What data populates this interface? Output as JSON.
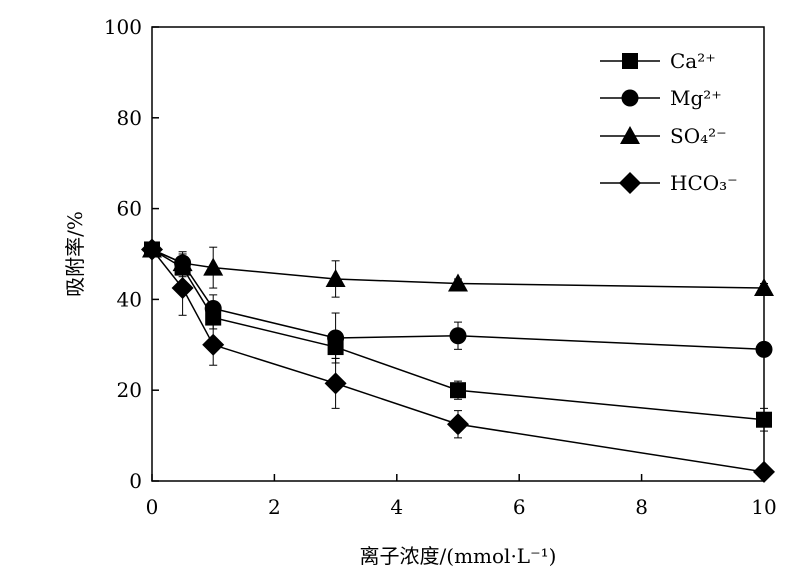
{
  "chart_data": {
    "type": "line",
    "title": "",
    "xlabel": "离子浓度/(mmol·L⁻¹)",
    "ylabel": "吸附率/%",
    "xlim": [
      0,
      10
    ],
    "ylim": [
      0,
      100
    ],
    "x_ticks": [
      0,
      2,
      4,
      6,
      8,
      10
    ],
    "y_ticks": [
      0,
      20,
      40,
      60,
      80,
      100
    ],
    "grid": false,
    "legend_position": "top-right",
    "series": [
      {
        "name": "Ca²⁺",
        "marker": "square",
        "x": [
          0,
          0.5,
          1,
          3,
          5,
          10
        ],
        "y": [
          51,
          47,
          36,
          29.5,
          20,
          13.5
        ],
        "err": [
          1.5,
          2,
          2.5,
          2.5,
          2,
          2.5
        ]
      },
      {
        "name": "Mg²⁺",
        "marker": "circle",
        "x": [
          0,
          0.5,
          1,
          3,
          5,
          10
        ],
        "y": [
          51,
          48,
          38,
          31.5,
          32,
          29
        ],
        "err": [
          1.5,
          2.5,
          3,
          5.5,
          3,
          1.5
        ]
      },
      {
        "name": "SO₄²⁻",
        "marker": "triangle",
        "x": [
          0,
          0.5,
          1,
          3,
          5,
          10
        ],
        "y": [
          51,
          48,
          47,
          44.5,
          43.5,
          42.5
        ],
        "err": [
          1.5,
          2,
          4.5,
          4,
          1,
          1
        ]
      },
      {
        "name": "HCO₃⁻",
        "marker": "diamond",
        "x": [
          0,
          0.5,
          1,
          3,
          5,
          10
        ],
        "y": [
          51,
          42.5,
          30,
          21.5,
          12.5,
          2
        ],
        "err": [
          1.5,
          6,
          4.5,
          5.5,
          3,
          1
        ]
      }
    ]
  }
}
